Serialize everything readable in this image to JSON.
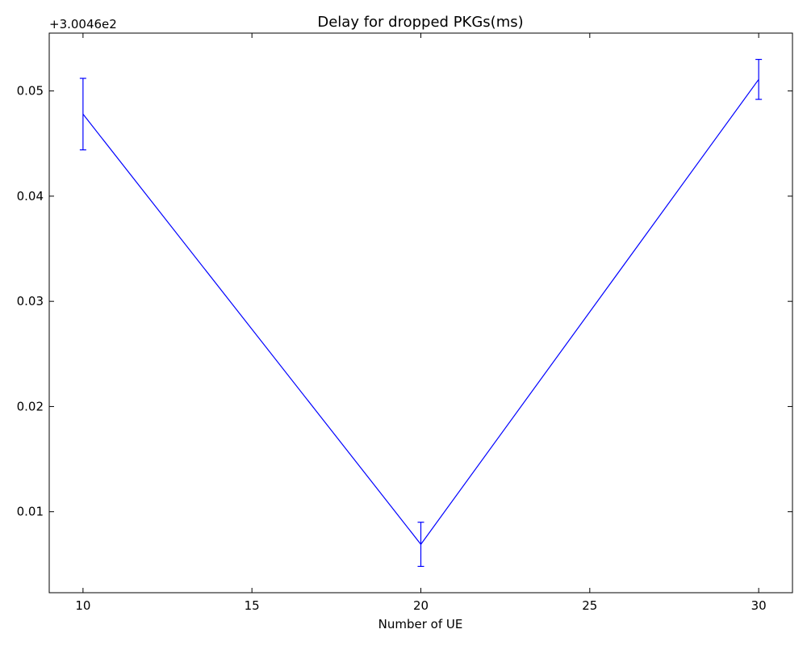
{
  "chart_data": {
    "type": "line",
    "title": "Delay for dropped PKGs(ms)",
    "xlabel": "Number of UE",
    "ylabel": "",
    "y_offset_label": "+3.0046e2",
    "xlim": [
      9,
      31
    ],
    "ylim": [
      0.0023,
      0.0555
    ],
    "x_ticks": [
      10,
      15,
      20,
      25,
      30
    ],
    "x_tick_labels": [
      "10",
      "15",
      "20",
      "25",
      "30"
    ],
    "y_ticks": [
      0.01,
      0.02,
      0.03,
      0.04,
      0.05
    ],
    "y_tick_labels": [
      "0.01",
      "0.02",
      "0.03",
      "0.04",
      "0.05"
    ],
    "grid": false,
    "series": [
      {
        "color": "#0000ff",
        "x": [
          10,
          20,
          30
        ],
        "y": [
          0.0478,
          0.0069,
          0.0511
        ],
        "yerr": [
          0.0034,
          0.0021,
          0.0019
        ]
      }
    ]
  }
}
